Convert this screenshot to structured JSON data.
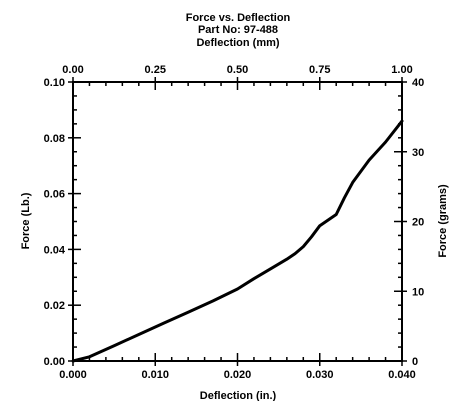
{
  "chart_data": {
    "type": "line",
    "title": "Force vs. Deflection",
    "subtitle": "Part No: 97-488",
    "xlabel": "Deflection (in.)",
    "ylabel": "Force (Lb.)",
    "x2label": "Deflection (mm)",
    "y2label": "Force (grams)",
    "xlim": [
      0,
      0.04
    ],
    "ylim": [
      0,
      0.1
    ],
    "x2lim": [
      0,
      1.0
    ],
    "y2lim": [
      0,
      40
    ],
    "xticks": [
      "0.000",
      "0.010",
      "0.020",
      "0.030",
      "0.040"
    ],
    "yticks": [
      "0.00",
      "0.02",
      "0.04",
      "0.06",
      "0.08",
      "0.10"
    ],
    "x2ticks": [
      "0.00",
      "0.25",
      "0.50",
      "0.75",
      "1.00"
    ],
    "y2ticks": [
      "0",
      "10",
      "20",
      "30",
      "40"
    ],
    "grid": false,
    "series": [
      {
        "color": "#000000",
        "x": [
          0.0,
          0.002,
          0.005,
          0.008,
          0.011,
          0.014,
          0.017,
          0.02,
          0.022,
          0.024,
          0.026,
          0.027,
          0.028,
          0.029,
          0.03,
          0.031,
          0.032,
          0.033,
          0.034,
          0.036,
          0.038,
          0.04
        ],
        "y": [
          0.0,
          0.0015,
          0.0055,
          0.0095,
          0.0135,
          0.0175,
          0.0215,
          0.0258,
          0.0295,
          0.033,
          0.0365,
          0.0385,
          0.041,
          0.0445,
          0.0485,
          0.0505,
          0.0525,
          0.0585,
          0.064,
          0.072,
          0.0785,
          0.086
        ]
      }
    ]
  }
}
